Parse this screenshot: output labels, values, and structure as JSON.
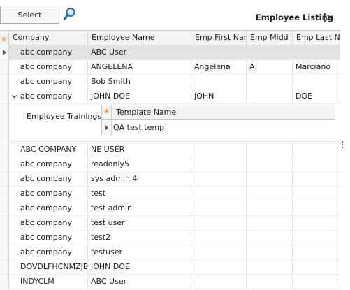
{
  "toolbar": {
    "select_label": "Select",
    "search_icon": "search-icon"
  },
  "listing": {
    "title": "Employee Listing",
    "play_icon": "play-icon"
  },
  "grid": {
    "columns": [
      "Company",
      "Employee Name",
      "Emp First Nar",
      "Emp Midd",
      "Emp Last N"
    ],
    "rows": [
      [
        "abc company",
        "ABC User",
        "",
        "",
        ""
      ],
      [
        "abc company",
        "ANGELENA",
        "Angelena",
        "A",
        "Marciano"
      ],
      [
        "abc company",
        "Bob Smith",
        "",
        "",
        ""
      ],
      [
        "abc company",
        "JOHN DOE",
        "JOHN",
        "",
        "DOE"
      ],
      [
        "ABC COMPANY",
        "NE USER",
        "",
        "",
        ""
      ],
      [
        "abc company",
        "readonly5",
        "",
        "",
        ""
      ],
      [
        "abc company",
        "sys admin 4",
        "",
        "",
        ""
      ],
      [
        "abc company",
        "test",
        "",
        "",
        ""
      ],
      [
        "abc company",
        "test admin",
        "",
        "",
        ""
      ],
      [
        "abc company",
        "test user",
        "",
        "",
        ""
      ],
      [
        "abc company",
        "test2",
        "",
        "",
        ""
      ],
      [
        "abc company",
        "testuser",
        "",
        "",
        ""
      ],
      [
        "DOVDLFHCNMZJBI",
        "JOHN DOE",
        "",
        "",
        ""
      ],
      [
        "INDYCLM",
        "ABC User",
        "",
        "",
        ""
      ]
    ]
  },
  "detail": {
    "label": "Employee Trainings",
    "subgrid": {
      "column": "Template Name",
      "rows": [
        "QA test temp"
      ]
    }
  },
  "colors": {
    "accent": "#e8870c",
    "selected_row": "#e3e3e3",
    "header_bg": "#f3f3f3"
  }
}
